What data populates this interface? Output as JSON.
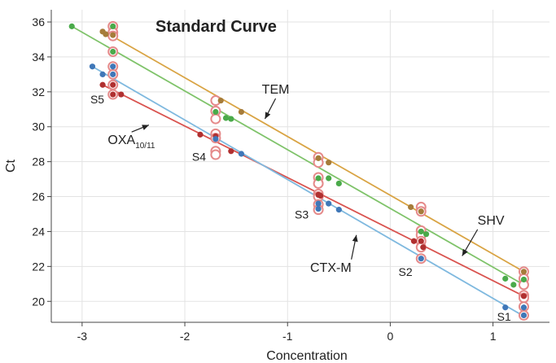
{
  "chart_data": {
    "type": "scatter",
    "title": "Standard Curve",
    "xlabel": "Concentration",
    "ylabel": "Ct",
    "xlim": [
      -3.3,
      1.55
    ],
    "ylim": [
      18.8,
      36.7
    ],
    "x_ticks": [
      -3,
      -2,
      -1,
      0,
      1
    ],
    "y_ticks": [
      20,
      22,
      24,
      26,
      28,
      30,
      32,
      34,
      36
    ],
    "grid": true,
    "series": [
      {
        "name": "TEM",
        "color": "#d9a444",
        "dot_color": "#a67c3a",
        "line": [
          [
            -2.8,
            35.5
          ],
          [
            1.3,
            21.7
          ]
        ],
        "points": [
          [
            -2.8,
            35.45
          ],
          [
            -2.77,
            35.3
          ],
          [
            -2.7,
            35.25
          ],
          [
            -1.65,
            31.5
          ],
          [
            -1.45,
            30.85
          ],
          [
            -0.7,
            28.2
          ],
          [
            -0.6,
            27.95
          ],
          [
            0.2,
            25.4
          ],
          [
            0.3,
            25.15
          ],
          [
            1.3,
            21.7
          ]
        ]
      },
      {
        "name": "SHV",
        "color": "#7fc36a",
        "dot_color": "#4aaa4a",
        "line": [
          [
            -3.1,
            35.75
          ],
          [
            1.3,
            20.95
          ]
        ],
        "points": [
          [
            -3.1,
            35.75
          ],
          [
            -2.7,
            35.75
          ],
          [
            -2.7,
            34.3
          ],
          [
            -1.7,
            30.85
          ],
          [
            -1.6,
            30.5
          ],
          [
            -1.55,
            30.45
          ],
          [
            -0.7,
            27.05
          ],
          [
            -0.6,
            27.05
          ],
          [
            -0.5,
            26.75
          ],
          [
            0.3,
            24.0
          ],
          [
            0.35,
            23.85
          ],
          [
            1.12,
            21.3
          ],
          [
            1.2,
            20.95
          ],
          [
            1.3,
            21.25
          ]
        ]
      },
      {
        "name": "OXA10/11",
        "color": "#d9534f",
        "dot_color": "#b03030",
        "line": [
          [
            -2.8,
            32.4
          ],
          [
            1.3,
            20.3
          ]
        ],
        "points": [
          [
            -2.8,
            32.4
          ],
          [
            -2.7,
            32.4
          ],
          [
            -2.7,
            31.85
          ],
          [
            -2.62,
            31.85
          ],
          [
            -1.85,
            29.55
          ],
          [
            -1.7,
            29.45
          ],
          [
            -1.55,
            28.6
          ],
          [
            -0.7,
            26.1
          ],
          [
            -0.68,
            26.05
          ],
          [
            0.23,
            23.45
          ],
          [
            0.3,
            23.45
          ],
          [
            0.32,
            23.1
          ],
          [
            1.3,
            20.3
          ]
        ]
      },
      {
        "name": "CTX-M",
        "color": "#7fb9df",
        "dot_color": "#3f77b8",
        "line": [
          [
            -2.9,
            33.45
          ],
          [
            1.3,
            19.15
          ]
        ],
        "points": [
          [
            -2.9,
            33.45
          ],
          [
            -2.8,
            33.0
          ],
          [
            -2.7,
            33.45
          ],
          [
            -2.7,
            33.0
          ],
          [
            -1.7,
            29.3
          ],
          [
            -1.45,
            28.45
          ],
          [
            -0.7,
            25.6
          ],
          [
            -0.7,
            25.3
          ],
          [
            -0.6,
            25.6
          ],
          [
            -0.5,
            25.25
          ],
          [
            0.3,
            22.45
          ],
          [
            1.12,
            19.65
          ],
          [
            1.3,
            19.65
          ],
          [
            1.3,
            19.2
          ]
        ]
      }
    ],
    "ringed_points": [
      [
        -2.7,
        35.75
      ],
      [
        -2.7,
        35.4
      ],
      [
        -2.7,
        35.2
      ],
      [
        -2.7,
        34.3
      ],
      [
        -2.7,
        33.45
      ],
      [
        -2.7,
        33.0
      ],
      [
        -2.7,
        32.4
      ],
      [
        -2.7,
        31.85
      ],
      [
        -1.7,
        31.5
      ],
      [
        -1.7,
        30.9
      ],
      [
        -1.7,
        30.45
      ],
      [
        -1.7,
        29.6
      ],
      [
        -1.7,
        29.35
      ],
      [
        -1.7,
        28.6
      ],
      [
        -1.7,
        28.4
      ],
      [
        -0.7,
        28.25
      ],
      [
        -0.7,
        27.95
      ],
      [
        -0.7,
        27.1
      ],
      [
        -0.7,
        26.75
      ],
      [
        -0.7,
        26.15
      ],
      [
        -0.7,
        26.0
      ],
      [
        -0.7,
        25.55
      ],
      [
        -0.7,
        25.25
      ],
      [
        0.3,
        25.4
      ],
      [
        0.3,
        25.15
      ],
      [
        0.3,
        24.05
      ],
      [
        0.3,
        23.8
      ],
      [
        0.3,
        23.45
      ],
      [
        0.3,
        23.1
      ],
      [
        0.3,
        22.45
      ],
      [
        1.3,
        21.7
      ],
      [
        1.3,
        21.3
      ],
      [
        1.3,
        20.95
      ],
      [
        1.3,
        20.35
      ],
      [
        1.3,
        20.2
      ],
      [
        1.3,
        19.7
      ],
      [
        1.3,
        19.2
      ]
    ],
    "ring_color": "#e58a8a",
    "annotations": [
      {
        "text": "TEM",
        "x": -1.25,
        "y": 31.9,
        "arrow_to": [
          -1.22,
          30.45
        ]
      },
      {
        "text": "OXA",
        "sub": "10/11",
        "x": -2.75,
        "y": 29.0,
        "arrow_to": [
          -2.35,
          30.1
        ]
      },
      {
        "text": "CTX-M",
        "x": -0.78,
        "y": 21.7,
        "arrow_to": [
          -0.33,
          23.8
        ]
      },
      {
        "text": "SHV",
        "x": 0.85,
        "y": 24.4,
        "arrow_to": [
          0.7,
          22.6
        ]
      }
    ],
    "standard_labels": [
      {
        "text": "S5",
        "x": -2.92,
        "y": 31.35
      },
      {
        "text": "S4",
        "x": -1.93,
        "y": 28.05
      },
      {
        "text": "S3",
        "x": -0.93,
        "y": 24.75
      },
      {
        "text": "S2",
        "x": 0.08,
        "y": 21.45
      },
      {
        "text": "S1",
        "x": 1.04,
        "y": 18.9
      }
    ]
  }
}
